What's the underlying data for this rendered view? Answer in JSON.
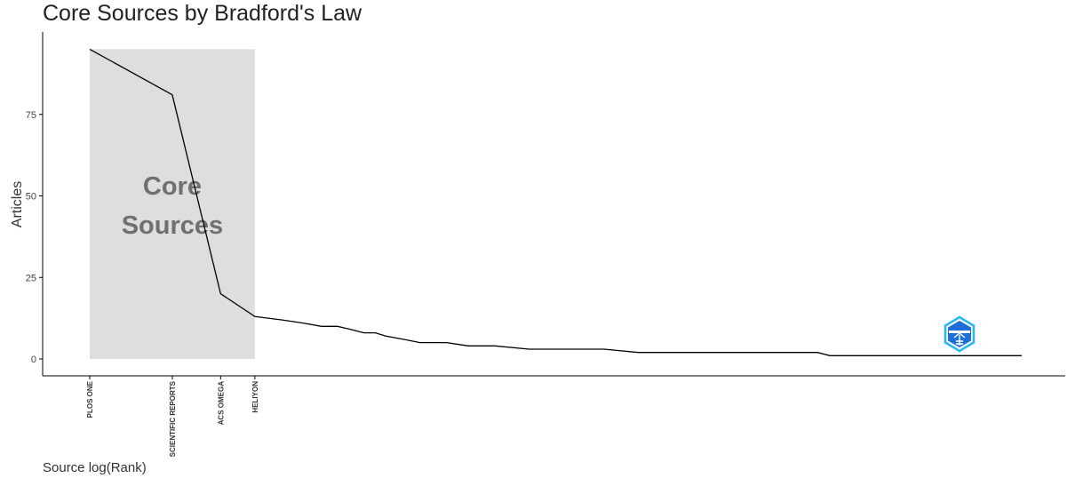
{
  "chart_data": {
    "type": "line",
    "title": "Core Sources by Bradford's Law",
    "xlabel": "Source log(Rank)",
    "ylabel": "Articles",
    "x_scale": "log",
    "ylim": [
      0,
      100
    ],
    "y_ticks": [
      0,
      25,
      50,
      75
    ],
    "grid": false,
    "legend": "none",
    "core_zone": {
      "label_line1": "Core",
      "label_line2": "Sources",
      "rank_from": 1,
      "rank_to": 4,
      "fill_color": "#dedede",
      "label_color": "#707070"
    },
    "x_tick_labels": [
      "PLOS ONE",
      "SCIENTIFIC REPORTS",
      "ACS OMEGA",
      "HELIYON"
    ],
    "x_tick_ranks": [
      1,
      2,
      3,
      4
    ],
    "line_color": "#000000",
    "series": [
      {
        "x": [
          1,
          2,
          3,
          4,
          5,
          6,
          7,
          8,
          9,
          10,
          11,
          12,
          14,
          16,
          20,
          24,
          30,
          40,
          50,
          60,
          75,
          100,
          150,
          200,
          250,
          300,
          350,
          400,
          450,
          500,
          600,
          1000,
          1500,
          2500
        ],
        "values": [
          95,
          81,
          20,
          13,
          12,
          11,
          10,
          10,
          9,
          8,
          8,
          7,
          6,
          5,
          5,
          4,
          4,
          3,
          3,
          3,
          3,
          2,
          2,
          2,
          2,
          2,
          2,
          2,
          2,
          1,
          1,
          1,
          1,
          1
        ]
      }
    ]
  },
  "watermark": {
    "name": "bibliometrix-logo-icon",
    "color": "#1e88e5"
  }
}
